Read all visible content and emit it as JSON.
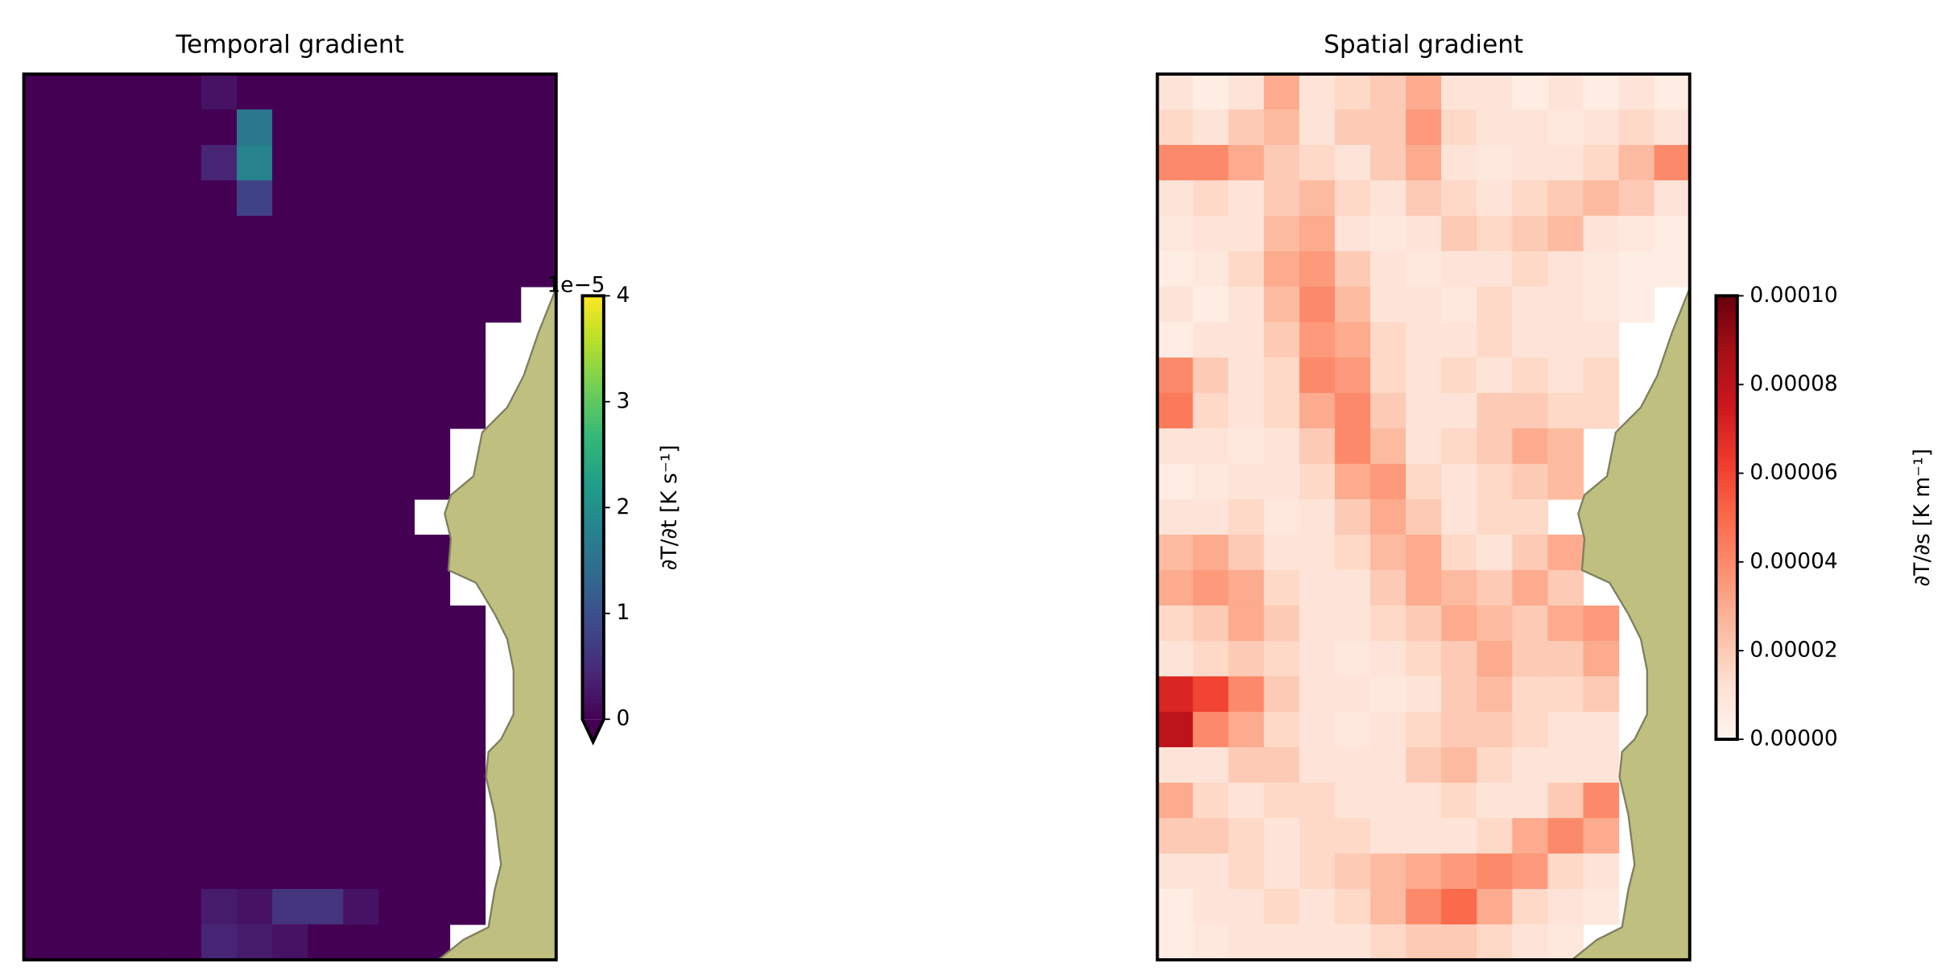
{
  "chart_data": [
    {
      "type": "heatmap",
      "title": "Temporal gradient",
      "cmap": "viridis",
      "extend": "min",
      "clim": [
        0,
        4
      ],
      "yticks": [
        0,
        1,
        2,
        3,
        4
      ],
      "offset_label": "1e−5",
      "colorbar_label": "∂T/∂t [K s⁻¹]",
      "values": [
        [
          0,
          0,
          0,
          0,
          0,
          0.2,
          0,
          0,
          0,
          0,
          0,
          0,
          0,
          0,
          0
        ],
        [
          0,
          0,
          0,
          0,
          0,
          0,
          1.6,
          0,
          0,
          0,
          0,
          0,
          0,
          0,
          0
        ],
        [
          0,
          0,
          0,
          0,
          0,
          0.4,
          1.8,
          0,
          0,
          0,
          0,
          0,
          0,
          0,
          0
        ],
        [
          0,
          0,
          0,
          0,
          0,
          0,
          0.8,
          0,
          0,
          0,
          0,
          0,
          0,
          0,
          0
        ],
        [
          0,
          0,
          0,
          0,
          0,
          0,
          0,
          0,
          0,
          0,
          0,
          0,
          0,
          0,
          0
        ],
        [
          0,
          0,
          0,
          0,
          0,
          0,
          0,
          0,
          0,
          0,
          0,
          0,
          0,
          0,
          0
        ],
        [
          0,
          0,
          0,
          0,
          0,
          0,
          0,
          0,
          0,
          0,
          0,
          0,
          0,
          0,
          null
        ],
        [
          0,
          0,
          0,
          0,
          0,
          0,
          0,
          0,
          0,
          0,
          0,
          0,
          0,
          null,
          null
        ],
        [
          0,
          0,
          0,
          0,
          0,
          0,
          0,
          0,
          0,
          0,
          0,
          0,
          0,
          null,
          null
        ],
        [
          0,
          0,
          0,
          0,
          0,
          0,
          0,
          0,
          0,
          0,
          0,
          0,
          0,
          null,
          null
        ],
        [
          0,
          0,
          0,
          0,
          0,
          0,
          0,
          0,
          0,
          0,
          0,
          0,
          null,
          null,
          null
        ],
        [
          0,
          0,
          0,
          0,
          0,
          0,
          0,
          0,
          0,
          0,
          0,
          0,
          null,
          null,
          null
        ],
        [
          0,
          0,
          0,
          0,
          0,
          0,
          0,
          0,
          0,
          0,
          0,
          null,
          null,
          null,
          null
        ],
        [
          0,
          0,
          0,
          0,
          0,
          0,
          0,
          0,
          0,
          0,
          0,
          0,
          null,
          null,
          null
        ],
        [
          0,
          0,
          0,
          0,
          0,
          0,
          0,
          0,
          0,
          0,
          0,
          0,
          null,
          null,
          null
        ],
        [
          0,
          0,
          0,
          0,
          0,
          0,
          0,
          0,
          0,
          0,
          0,
          0,
          0,
          null,
          null
        ],
        [
          0,
          0,
          0,
          0,
          0,
          0,
          0,
          0,
          0,
          0,
          0,
          0,
          0,
          null,
          null
        ],
        [
          0,
          0,
          0,
          0,
          0,
          0,
          0,
          0,
          0,
          0,
          0,
          0,
          0,
          null,
          null
        ],
        [
          0,
          0,
          0,
          0,
          0,
          0,
          0,
          0,
          0,
          0,
          0,
          0,
          0,
          null,
          null
        ],
        [
          0,
          0,
          0,
          0,
          0,
          0,
          0,
          0,
          0,
          0,
          0,
          0,
          0,
          null,
          null
        ],
        [
          0,
          0,
          0,
          0,
          0,
          0,
          0,
          0,
          0,
          0,
          0,
          0,
          0,
          null,
          null
        ],
        [
          0,
          0,
          0,
          0,
          0,
          0,
          0,
          0,
          0,
          0,
          0,
          0,
          0,
          null,
          null
        ],
        [
          0,
          0,
          0,
          0,
          0,
          0,
          0,
          0,
          0,
          0,
          0,
          0,
          0,
          null,
          null
        ],
        [
          0,
          0,
          0,
          0,
          0,
          0.3,
          0.2,
          0.6,
          0.6,
          0.2,
          0,
          0,
          0,
          null,
          null
        ],
        [
          0,
          0,
          0,
          0,
          0,
          0.4,
          0.3,
          0.2,
          0,
          0,
          0,
          0,
          null,
          null,
          null
        ]
      ]
    },
    {
      "type": "heatmap",
      "title": "Spatial gradient",
      "cmap": "Reds",
      "clim": [
        0,
        0.0001
      ],
      "yticks": [
        {
          "value": 0,
          "label": "0.00000"
        },
        {
          "value": 2e-05,
          "label": "0.00002"
        },
        {
          "value": 4e-05,
          "label": "0.00004"
        },
        {
          "value": 6e-05,
          "label": "0.00006"
        },
        {
          "value": 8e-05,
          "label": "0.00008"
        },
        {
          "value": 0.0001,
          "label": "0.00010"
        }
      ],
      "colorbar_label": "∂T/∂s [K m⁻¹]",
      "values": [
        [
          1e-05,
          5e-06,
          1e-05,
          3e-05,
          1e-05,
          1.5e-05,
          2e-05,
          3e-05,
          1e-05,
          1e-05,
          5e-06,
          1e-05,
          5e-06,
          1e-05,
          5e-06
        ],
        [
          1.5e-05,
          1e-05,
          2e-05,
          2.5e-05,
          1e-05,
          2e-05,
          2e-05,
          3.5e-05,
          1.5e-05,
          1e-05,
          1e-05,
          8e-06,
          1e-05,
          1.5e-05,
          1e-05
        ],
        [
          4e-05,
          4e-05,
          3e-05,
          2e-05,
          1.5e-05,
          1e-05,
          2e-05,
          3e-05,
          1e-05,
          8e-06,
          1e-05,
          1e-05,
          1.5e-05,
          2.5e-05,
          4e-05
        ],
        [
          1e-05,
          1.5e-05,
          1e-05,
          2e-05,
          2.5e-05,
          1.5e-05,
          1e-05,
          2e-05,
          1.5e-05,
          1e-05,
          1.5e-05,
          2e-05,
          2.5e-05,
          2e-05,
          1e-05
        ],
        [
          8e-06,
          1e-05,
          1e-05,
          2.5e-05,
          3e-05,
          1e-05,
          8e-06,
          1e-05,
          2e-05,
          1.5e-05,
          2e-05,
          2.5e-05,
          1e-05,
          8e-06,
          5e-06
        ],
        [
          5e-06,
          8e-06,
          1.5e-05,
          3e-05,
          3.5e-05,
          2e-05,
          1e-05,
          8e-06,
          1e-05,
          1e-05,
          1.5e-05,
          1e-05,
          8e-06,
          5e-06,
          5e-06
        ],
        [
          1e-05,
          5e-06,
          1e-05,
          2.5e-05,
          4e-05,
          2.5e-05,
          1e-05,
          1e-05,
          8e-06,
          1.5e-05,
          1e-05,
          1e-05,
          8e-06,
          5e-06,
          null
        ],
        [
          5e-06,
          1e-05,
          1e-05,
          2e-05,
          3.5e-05,
          3e-05,
          1.5e-05,
          1e-05,
          1e-05,
          1.5e-05,
          1e-05,
          1e-05,
          1e-05,
          null,
          null
        ],
        [
          4e-05,
          2e-05,
          1e-05,
          1.5e-05,
          4e-05,
          3.5e-05,
          1.5e-05,
          1e-05,
          1.5e-05,
          1e-05,
          1.5e-05,
          1e-05,
          1.5e-05,
          null,
          null
        ],
        [
          4.5e-05,
          1.5e-05,
          1e-05,
          1.5e-05,
          3e-05,
          4e-05,
          2e-05,
          1e-05,
          1e-05,
          2e-05,
          2e-05,
          1.5e-05,
          1.5e-05,
          null,
          null
        ],
        [
          1e-05,
          1e-05,
          8e-06,
          1e-05,
          2e-05,
          4e-05,
          2.5e-05,
          1e-05,
          1.5e-05,
          2e-05,
          3e-05,
          2.5e-05,
          null,
          null,
          null
        ],
        [
          5e-06,
          8e-06,
          1e-05,
          1e-05,
          1.5e-05,
          3e-05,
          3.5e-05,
          1.5e-05,
          1e-05,
          1.5e-05,
          2e-05,
          2.5e-05,
          null,
          null,
          null
        ],
        [
          1e-05,
          1e-05,
          1.5e-05,
          8e-06,
          1e-05,
          2e-05,
          3e-05,
          2e-05,
          1e-05,
          1.5e-05,
          1.5e-05,
          null,
          null,
          null,
          null
        ],
        [
          2.5e-05,
          3e-05,
          2e-05,
          1e-05,
          1e-05,
          1.5e-05,
          2.5e-05,
          3e-05,
          1.5e-05,
          1e-05,
          2e-05,
          3e-05,
          null,
          null,
          null
        ],
        [
          3e-05,
          3.5e-05,
          3e-05,
          1.5e-05,
          1e-05,
          1e-05,
          2e-05,
          3e-05,
          2.5e-05,
          2e-05,
          3e-05,
          2e-05,
          null,
          null,
          null
        ],
        [
          1.5e-05,
          2e-05,
          3e-05,
          2e-05,
          1e-05,
          1e-05,
          1.5e-05,
          2e-05,
          3e-05,
          2.5e-05,
          2e-05,
          3e-05,
          3.5e-05,
          null,
          null
        ],
        [
          1e-05,
          1.5e-05,
          2e-05,
          1.5e-05,
          1e-05,
          8e-06,
          1e-05,
          1.5e-05,
          2e-05,
          3e-05,
          2e-05,
          2e-05,
          3e-05,
          null,
          null
        ],
        [
          7e-05,
          6e-05,
          4e-05,
          2e-05,
          1e-05,
          1e-05,
          8e-06,
          1e-05,
          2e-05,
          2.5e-05,
          1.5e-05,
          1.5e-05,
          2e-05,
          null,
          null
        ],
        [
          8e-05,
          4e-05,
          3e-05,
          1.5e-05,
          1e-05,
          8e-06,
          1e-05,
          1.5e-05,
          2e-05,
          2e-05,
          1.5e-05,
          1e-05,
          1e-05,
          null,
          null
        ],
        [
          1e-05,
          1e-05,
          2e-05,
          2e-05,
          1e-05,
          1e-05,
          1e-05,
          2e-05,
          2.5e-05,
          1.5e-05,
          1e-05,
          1e-05,
          1e-05,
          null,
          null
        ],
        [
          3e-05,
          1.5e-05,
          1e-05,
          1.5e-05,
          1.5e-05,
          1e-05,
          1e-05,
          1e-05,
          1.5e-05,
          1e-05,
          1e-05,
          2e-05,
          4e-05,
          null,
          null
        ],
        [
          2e-05,
          2e-05,
          1.5e-05,
          1e-05,
          1.5e-05,
          1.5e-05,
          1e-05,
          1e-05,
          1e-05,
          1.5e-05,
          3e-05,
          4e-05,
          3e-05,
          null,
          null
        ],
        [
          1e-05,
          1e-05,
          1.5e-05,
          1e-05,
          1.5e-05,
          2e-05,
          2.5e-05,
          3e-05,
          3.5e-05,
          4e-05,
          3.5e-05,
          1.5e-05,
          1e-05,
          null,
          null
        ],
        [
          5e-06,
          1e-05,
          1e-05,
          1.5e-05,
          1e-05,
          1.5e-05,
          2.5e-05,
          4e-05,
          5e-05,
          3e-05,
          1.5e-05,
          1e-05,
          8e-06,
          null,
          null
        ],
        [
          5e-06,
          8e-06,
          1e-05,
          1e-05,
          1e-05,
          1e-05,
          1.5e-05,
          2e-05,
          2e-05,
          1.5e-05,
          1e-05,
          8e-06,
          null,
          null,
          null
        ]
      ]
    }
  ]
}
